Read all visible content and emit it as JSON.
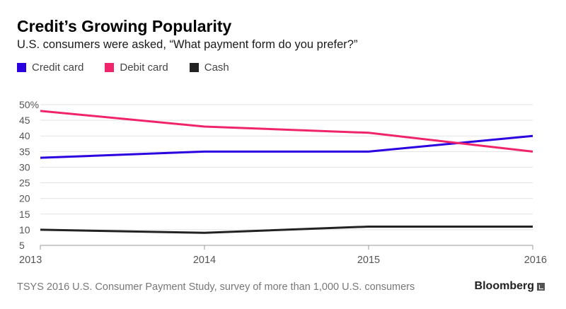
{
  "chart_data": {
    "type": "line",
    "title": "Credit’s Growing Popularity",
    "subtitle": "U.S. consumers were asked, “What payment form do you prefer?”",
    "x": [
      "2013",
      "2014",
      "2015",
      "2016"
    ],
    "y_ticks": [
      "5",
      "10",
      "15",
      "20",
      "25",
      "30",
      "35",
      "40",
      "45",
      "50%"
    ],
    "ylim": [
      5,
      50
    ],
    "grid": true,
    "legend_position": "top-left",
    "series": [
      {
        "name": "Credit card",
        "color": "#2a00e0",
        "values": [
          33,
          35,
          35,
          40
        ]
      },
      {
        "name": "Debit card",
        "color": "#f0246a",
        "values": [
          48,
          43,
          41,
          35
        ]
      },
      {
        "name": "Cash",
        "color": "#222222",
        "values": [
          10,
          9,
          11,
          11
        ]
      }
    ]
  },
  "footer": {
    "source": "TSYS 2016 U.S. Consumer Payment Study, survey of more than 1,000 U.S. consumers",
    "brand": "Bloomberg"
  }
}
